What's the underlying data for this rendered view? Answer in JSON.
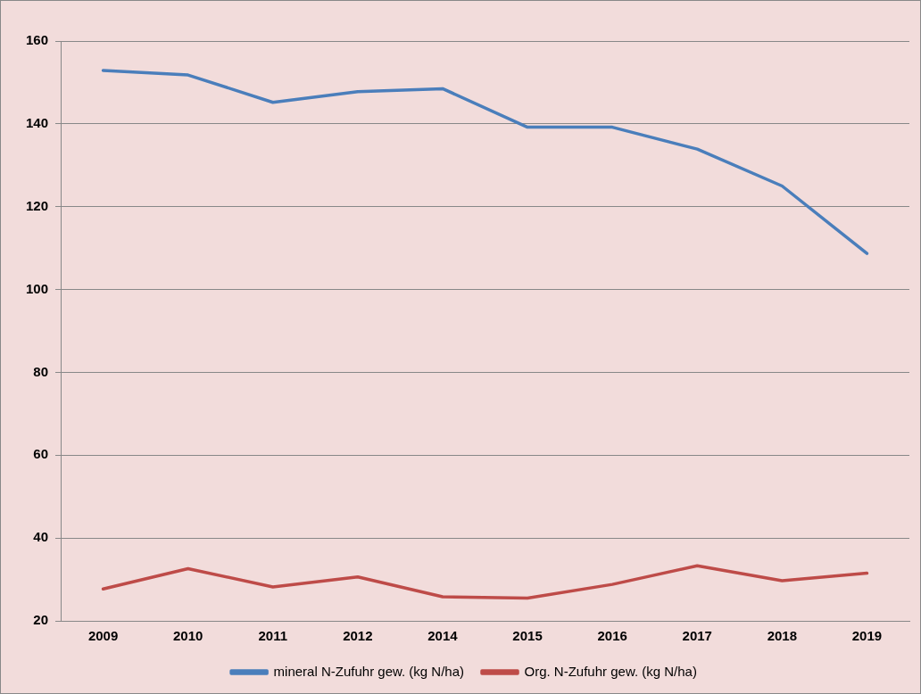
{
  "chart_data": {
    "type": "line",
    "categories": [
      "2009",
      "2010",
      "2011",
      "2012",
      "2014",
      "2015",
      "2016",
      "2017",
      "2018",
      "2019"
    ],
    "series": [
      {
        "name": "mineral N-Zufuhr gew. (kg N/ha)",
        "color": "#4a7ebb",
        "values": [
          152.9,
          151.8,
          145.2,
          147.8,
          148.5,
          139.2,
          139.2,
          133.9,
          125,
          108.7
        ]
      },
      {
        "name": "Org. N-Zufuhr gew. (kg N/ha)",
        "color": "#be4b48",
        "values": [
          27.7,
          32.6,
          28.2,
          30.6,
          25.8,
          25.5,
          28.8,
          33.3,
          29.7,
          31.5
        ]
      }
    ],
    "ylim": [
      20,
      160
    ],
    "yticks": [
      20,
      40,
      60,
      80,
      100,
      120,
      140,
      160
    ],
    "grid": "y",
    "legend": "bottom",
    "marker": "none",
    "line_style": "solid"
  }
}
